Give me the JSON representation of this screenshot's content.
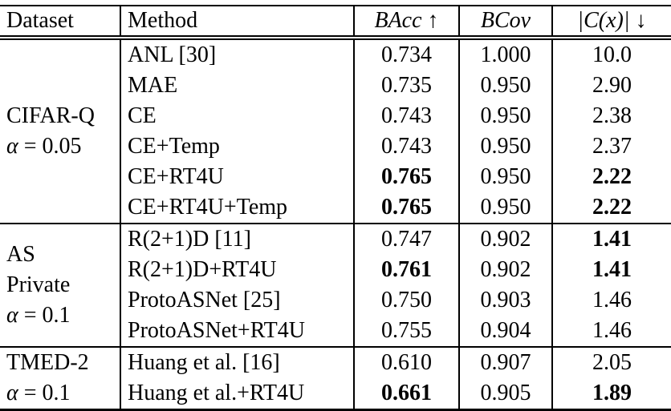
{
  "table": {
    "header": {
      "dataset": "Dataset",
      "method": "Method",
      "bacc": "BAcc",
      "bacc_arrow": "↑",
      "bcov": "BCov",
      "cx": "|C(x)|",
      "cx_arrow": "↓"
    },
    "groups": [
      {
        "lines": [
          "CIFAR-Q"
        ],
        "alpha_sym": "α",
        "alpha_rest": "= 0.05"
      },
      {
        "lines": [
          "AS",
          "Private"
        ],
        "alpha_sym": "α",
        "alpha_rest": "= 0.1"
      },
      {
        "lines": [
          "TMED-2"
        ],
        "alpha_sym": "α",
        "alpha_rest": "= 0.1"
      }
    ],
    "rows": [
      {
        "method": "ANL [30]",
        "bacc": "0.734",
        "bcov": "1.000",
        "cx": "10.0"
      },
      {
        "method": "MAE",
        "bacc": "0.735",
        "bcov": "0.950",
        "cx": "2.90"
      },
      {
        "method": "CE",
        "bacc": "0.743",
        "bcov": "0.950",
        "cx": "2.38"
      },
      {
        "method": "CE+Temp",
        "bacc": "0.743",
        "bcov": "0.950",
        "cx": "2.37"
      },
      {
        "method": "CE+RT4U",
        "bacc": "0.765",
        "bcov": "0.950",
        "cx": "2.22"
      },
      {
        "method": "CE+RT4U+Temp",
        "bacc": "0.765",
        "bcov": "0.950",
        "cx": "2.22"
      },
      {
        "method": "R(2+1)D [11]",
        "bacc": "0.747",
        "bcov": "0.902",
        "cx": "1.41"
      },
      {
        "method": "R(2+1)D+RT4U",
        "bacc": "0.761",
        "bcov": "0.902",
        "cx": "1.41"
      },
      {
        "method": "ProtoASNet [25]",
        "bacc": "0.750",
        "bcov": "0.903",
        "cx": "1.46"
      },
      {
        "method": "ProtoASNet+RT4U",
        "bacc": "0.755",
        "bcov": "0.904",
        "cx": "1.46"
      },
      {
        "method": "Huang et al. [16]",
        "bacc": "0.610",
        "bcov": "0.907",
        "cx": "2.05"
      },
      {
        "method": "Huang et al.+RT4U",
        "bacc": "0.661",
        "bcov": "0.905",
        "cx": "1.89"
      }
    ]
  },
  "chart_data": {
    "type": "table",
    "title": "",
    "columns": [
      "Dataset",
      "Method",
      "BAcc ↑",
      "BCov",
      "|C(x)| ↓"
    ],
    "rows": [
      [
        "CIFAR-Q α = 0.05",
        "ANL [30]",
        0.734,
        1.0,
        10.0
      ],
      [
        "CIFAR-Q α = 0.05",
        "MAE",
        0.735,
        0.95,
        2.9
      ],
      [
        "CIFAR-Q α = 0.05",
        "CE",
        0.743,
        0.95,
        2.38
      ],
      [
        "CIFAR-Q α = 0.05",
        "CE+Temp",
        0.743,
        0.95,
        2.37
      ],
      [
        "CIFAR-Q α = 0.05",
        "CE+RT4U",
        0.765,
        0.95,
        2.22
      ],
      [
        "CIFAR-Q α = 0.05",
        "CE+RT4U+Temp",
        0.765,
        0.95,
        2.22
      ],
      [
        "AS Private α = 0.1",
        "R(2+1)D [11]",
        0.747,
        0.902,
        1.41
      ],
      [
        "AS Private α = 0.1",
        "R(2+1)D+RT4U",
        0.761,
        0.902,
        1.41
      ],
      [
        "AS Private α = 0.1",
        "ProtoASNet [25]",
        0.75,
        0.903,
        1.46
      ],
      [
        "AS Private α = 0.1",
        "ProtoASNet+RT4U",
        0.755,
        0.904,
        1.46
      ],
      [
        "TMED-2 α = 0.1",
        "Huang et al. [16]",
        0.61,
        0.907,
        2.05
      ],
      [
        "TMED-2 α = 0.1",
        "Huang et al.+RT4U",
        0.661,
        0.905,
        1.89
      ]
    ]
  }
}
